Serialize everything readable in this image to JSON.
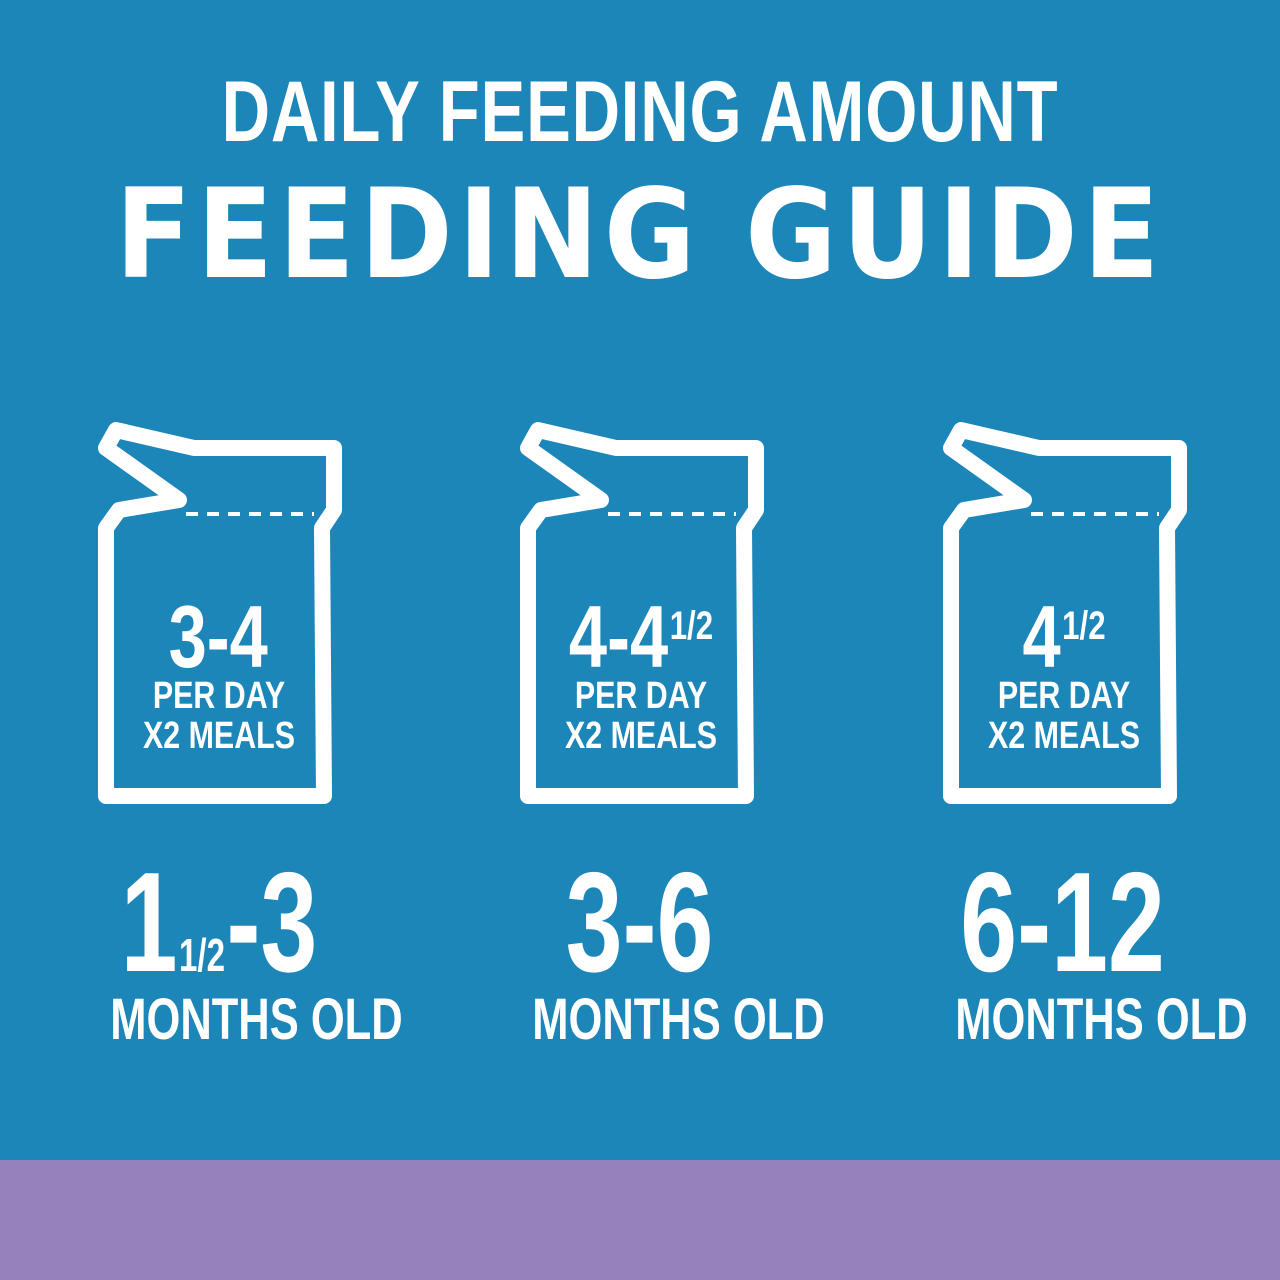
{
  "header": {
    "subtitle": "DAILY FEEDING AMOUNT",
    "title": "FEEDING GUIDE"
  },
  "colors": {
    "background": "#1c86b8",
    "footer_band": "#9681bd",
    "foreground": "#ffffff"
  },
  "icon": "food-bag-outline-icon",
  "columns": [
    {
      "amount_main": "3-4",
      "amount_fraction": "",
      "per_day": "PER DAY",
      "meals": "X2 MEALS",
      "age_pre": "1",
      "age_fraction": "1/2",
      "age_post": "-3",
      "age_label": "MONTHS OLD"
    },
    {
      "amount_main": "4-4",
      "amount_fraction": "1/2",
      "per_day": "PER DAY",
      "meals": "X2 MEALS",
      "age_pre": "3-6",
      "age_fraction": "",
      "age_post": "",
      "age_label": "MONTHS OLD"
    },
    {
      "amount_main": "4",
      "amount_fraction": "1/2",
      "per_day": "PER DAY",
      "meals": "X2 MEALS",
      "age_pre": "6-12",
      "age_fraction": "",
      "age_post": "",
      "age_label": "MONTHS OLD"
    }
  ]
}
